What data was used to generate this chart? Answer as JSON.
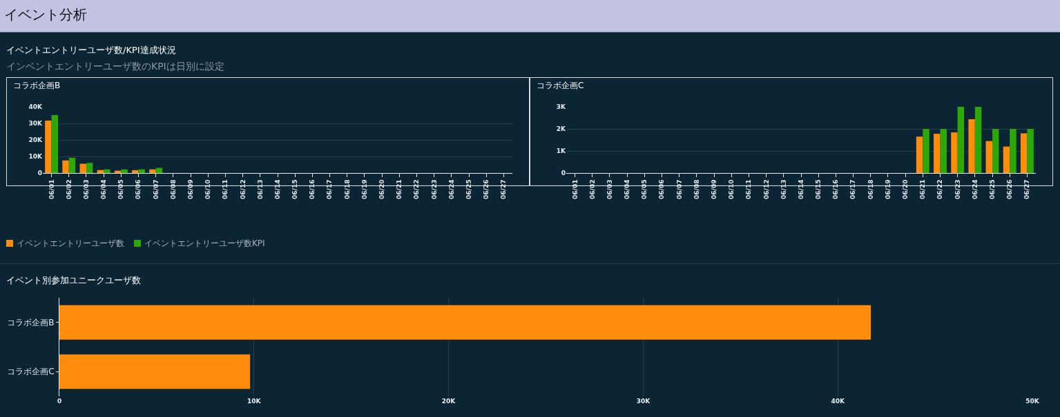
{
  "chart_data": [
    {
      "type": "other",
      "title": "イベント分析"
    },
    {
      "type": "other",
      "title": "イベントエントリーユーザ数/KPI達成状況",
      "subtitle": "インベントエントリーユーザ数のKPIは日別に設定"
    },
    {
      "type": "bar",
      "title": "コラボ企画B",
      "categories": [
        "06/01",
        "06/02",
        "06/03",
        "06/04",
        "06/05",
        "06/06",
        "06/07",
        "06/08",
        "06/09",
        "06/10",
        "06/11",
        "06/12",
        "06/13",
        "06/14",
        "06/15",
        "06/16",
        "06/17",
        "06/18",
        "06/19",
        "06/20",
        "06/21",
        "06/22",
        "06/23",
        "06/24",
        "06/25",
        "06/26",
        "06/27"
      ],
      "series": [
        {
          "name": "イベントエントリーユーザ数",
          "color": "#ff8c0a",
          "values": [
            31700,
            7600,
            5600,
            1800,
            1400,
            1700,
            2200,
            null,
            null,
            null,
            null,
            null,
            null,
            null,
            null,
            null,
            null,
            null,
            null,
            null,
            null,
            null,
            null,
            null,
            null,
            null,
            null
          ]
        },
        {
          "name": "イベントエントリーユーザ数KPI",
          "color": "#2ca808",
          "values": [
            35000,
            9200,
            6100,
            2200,
            2200,
            2200,
            3100,
            null,
            null,
            null,
            null,
            null,
            null,
            null,
            null,
            null,
            null,
            null,
            null,
            null,
            null,
            null,
            null,
            null,
            null,
            null,
            null
          ]
        }
      ],
      "ylim": [
        0,
        40000
      ],
      "yticks": [
        0,
        {
          "value": 10000,
          "label": "10K"
        },
        {
          "value": 20000,
          "label": "20K"
        },
        {
          "value": 30000,
          "label": "30K"
        },
        {
          "value": 40000,
          "label": "40K"
        }
      ],
      "grid": "y",
      "legend": "bottom"
    },
    {
      "type": "bar",
      "title": "コラボ企画C",
      "categories": [
        "06/01",
        "06/02",
        "06/03",
        "06/04",
        "06/05",
        "06/06",
        "06/07",
        "06/08",
        "06/09",
        "06/10",
        "06/11",
        "06/12",
        "06/13",
        "06/14",
        "06/15",
        "06/16",
        "06/17",
        "06/18",
        "06/19",
        "06/20",
        "06/21",
        "06/22",
        "06/23",
        "06/24",
        "06/25",
        "06/26",
        "06/27"
      ],
      "series": [
        {
          "color": "#ff8c0a",
          "values": [
            null,
            null,
            null,
            null,
            null,
            null,
            null,
            null,
            null,
            null,
            null,
            null,
            null,
            null,
            null,
            null,
            null,
            null,
            null,
            null,
            1650,
            1780,
            1840,
            2440,
            1450,
            1200,
            1800
          ]
        },
        {
          "color": "#2ca808",
          "values": [
            null,
            null,
            null,
            null,
            null,
            null,
            null,
            null,
            null,
            null,
            null,
            null,
            null,
            null,
            null,
            null,
            null,
            null,
            null,
            null,
            2000,
            2000,
            3000,
            3000,
            2000,
            2000,
            2000
          ]
        }
      ],
      "ylim": [
        0,
        3000
      ],
      "yticks": [
        0,
        {
          "value": 1000,
          "label": "1K"
        },
        {
          "value": 2000,
          "label": "2K"
        },
        {
          "value": 3000,
          "label": "3K"
        }
      ],
      "grid": "y"
    },
    {
      "type": "bar",
      "title": "イベント別参加ユニークユーザ数",
      "orientation": "horizontal",
      "categories": [
        "コラボ企画B",
        "コラボ企画C"
      ],
      "values": [
        41700,
        9800
      ],
      "color": "#ff8c0a",
      "xlim": [
        0,
        50000
      ],
      "xticks": [
        0,
        {
          "value": 10000,
          "label": "10K"
        },
        {
          "value": 20000,
          "label": "20K"
        },
        {
          "value": 30000,
          "label": "30K"
        },
        {
          "value": 40000,
          "label": "40K"
        },
        {
          "value": 50000,
          "label": "50K"
        }
      ],
      "grid": "x"
    }
  ]
}
